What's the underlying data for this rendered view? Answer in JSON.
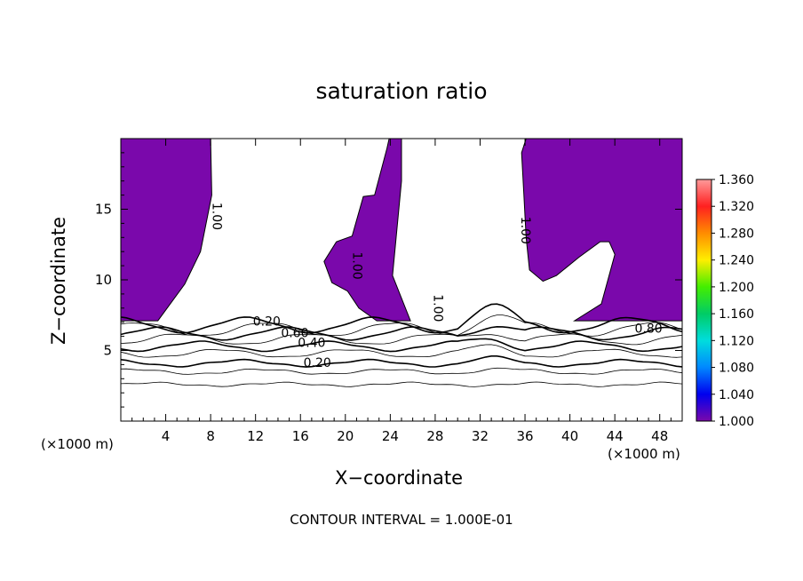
{
  "chart_data": {
    "type": "contour",
    "title": "saturation ratio",
    "xlabel": "X−coordinate",
    "ylabel": "Z−coordinate",
    "x_unit_left": "(×1000 m)",
    "x_unit_right": "(×1000 m)",
    "contour_interval_text": "CONTOUR INTERVAL = 1.000E-01",
    "xlim": [
      0,
      50
    ],
    "ylim": [
      0,
      20
    ],
    "x_ticks": [
      4,
      8,
      12,
      16,
      20,
      24,
      28,
      32,
      36,
      40,
      44,
      48
    ],
    "x_tick_labels": [
      "4",
      "8",
      "12",
      "16",
      "20",
      "24",
      "28",
      "32",
      "36",
      "40",
      "44",
      "48"
    ],
    "y_ticks": [
      5,
      10,
      15
    ],
    "y_tick_labels": [
      "5",
      "10",
      "15"
    ],
    "colorbar": {
      "labels": [
        "1.360",
        "1.320",
        "1.280",
        "1.240",
        "1.200",
        "1.160",
        "1.120",
        "1.080",
        "1.040",
        "1.000"
      ],
      "colors": [
        "#ff9a9a",
        "#ff2020",
        "#ff8c00",
        "#ffee00",
        "#44ee00",
        "#00cc66",
        "#00dddd",
        "#0088ff",
        "#0000ee",
        "#7a08ab"
      ]
    },
    "fill_color": "#7a08ab",
    "contour_levels_z": [
      2.6,
      3.5,
      4.1,
      4.8,
      5.3,
      5.8,
      6.2,
      6.5,
      6.8
    ],
    "contour_labels": [
      {
        "text": "0.20",
        "x": 17.5,
        "z": 4.1
      },
      {
        "text": "0.40",
        "x": 17.0,
        "z": 5.5
      },
      {
        "text": "0.60",
        "x": 15.5,
        "z": 6.2
      },
      {
        "text": "0.80",
        "x": 47.0,
        "z": 6.5
      },
      {
        "text": "1.00",
        "x": 8.5,
        "z": 14.5
      },
      {
        "text": "1.00",
        "x": 36.0,
        "z": 13.5
      },
      {
        "text": "1.00",
        "x": 21.0,
        "z": 11.0
      },
      {
        "text": "1.00",
        "x": 28.2,
        "z": 8.0
      },
      {
        "text": "0.20",
        "x": 13.0,
        "z": 7.0
      }
    ],
    "regions_above_1": [
      [
        [
          0,
          20
        ],
        [
          8,
          20
        ],
        [
          8.1,
          16
        ],
        [
          7.1,
          12
        ],
        [
          5.7,
          9.7
        ],
        [
          3.3,
          7.1
        ],
        [
          0,
          7.1
        ]
      ],
      [
        [
          23.9,
          20
        ],
        [
          25.0,
          20
        ],
        [
          25.0,
          17
        ],
        [
          24.2,
          10.3
        ],
        [
          25.8,
          7.1
        ],
        [
          22.8,
          7.1
        ],
        [
          21.2,
          8.0
        ],
        [
          20.2,
          9.2
        ],
        [
          18.8,
          9.8
        ],
        [
          18.1,
          11.3
        ],
        [
          19.2,
          12.7
        ],
        [
          20.6,
          13.1
        ],
        [
          21.6,
          15.9
        ],
        [
          22.6,
          16.0
        ],
        [
          23.7,
          19.3
        ]
      ],
      [
        [
          36.1,
          20
        ],
        [
          50,
          20
        ],
        [
          50,
          7.1
        ],
        [
          40.4,
          7.1
        ],
        [
          42.8,
          8.3
        ],
        [
          44.0,
          11.8
        ],
        [
          43.5,
          12.7
        ],
        [
          42.7,
          12.7
        ],
        [
          40.8,
          11.6
        ],
        [
          38.8,
          10.3
        ],
        [
          37.6,
          9.9
        ],
        [
          36.4,
          10.7
        ],
        [
          36.1,
          13.0
        ],
        [
          35.9,
          16.0
        ],
        [
          35.7,
          19.0
        ]
      ]
    ]
  }
}
